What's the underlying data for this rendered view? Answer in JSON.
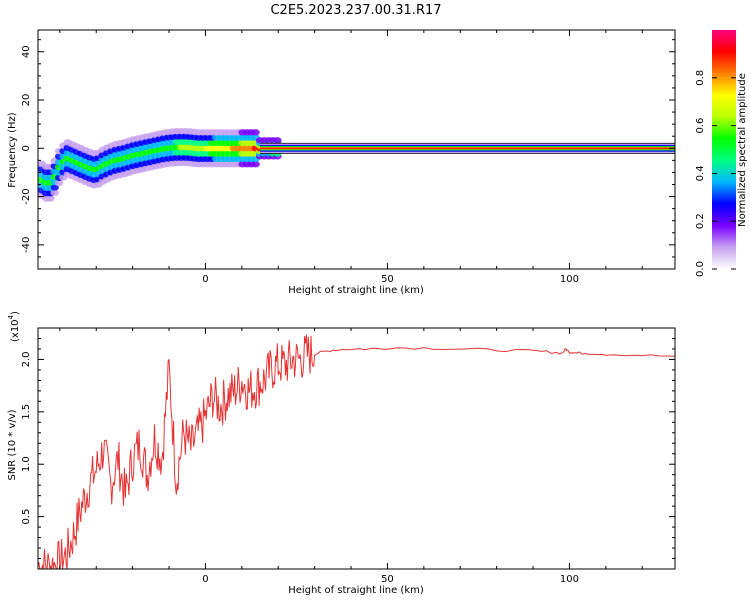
{
  "figure": {
    "title": "C2E5.2023.237.00.31.R17"
  },
  "chart_data": [
    {
      "type": "heatmap",
      "xlabel": "Height of straight line (km)",
      "ylabel": "Frequency (Hz)",
      "xlim": [
        -46,
        129
      ],
      "ylim": [
        -50,
        49
      ],
      "xticks": [
        0,
        50,
        100
      ],
      "xtick_labels": [
        "0",
        "50",
        "100"
      ],
      "yticks": [
        -40,
        -20,
        0,
        20,
        40
      ],
      "ytick_labels": [
        "-40",
        "-20",
        "0",
        "20",
        "40"
      ],
      "line_center": [
        [
          -45,
          -13
        ],
        [
          -43,
          -15
        ],
        [
          -41,
          -11
        ],
        [
          -40,
          -7
        ],
        [
          -38,
          -4
        ],
        [
          -35,
          -6
        ],
        [
          -32,
          -8
        ],
        [
          -30,
          -9
        ],
        [
          -28,
          -7
        ],
        [
          -25,
          -5
        ],
        [
          -22,
          -4
        ],
        [
          -20,
          -3
        ],
        [
          -17,
          -2
        ],
        [
          -14,
          -1
        ],
        [
          -11,
          0
        ],
        [
          -8,
          0.5
        ],
        [
          -5,
          0.5
        ],
        [
          -2,
          0
        ],
        [
          0,
          0
        ],
        [
          5,
          0
        ],
        [
          10,
          0
        ],
        [
          15,
          0
        ],
        [
          20,
          0
        ],
        [
          129,
          0
        ]
      ],
      "colorbar": {
        "label": "Normalized spectral amplitude",
        "range": [
          0,
          1
        ],
        "ticks": [
          0.0,
          0.2,
          0.4,
          0.6,
          0.8
        ],
        "tick_labels": [
          "0.0",
          "0.2",
          "0.4",
          "0.6",
          "0.8"
        ],
        "colors": [
          "#ffffff",
          "#c7a1f0",
          "#7a00ff",
          "#0000ff",
          "#00b7ff",
          "#00ff80",
          "#00ff00",
          "#b8ff00",
          "#ffff00",
          "#ff8000",
          "#ff0000",
          "#ff0080"
        ]
      }
    },
    {
      "type": "line",
      "xlabel": "Height of straight line (km)",
      "ylabel": "SNR (10 * v/v)",
      "y_multiplier": "(x10",
      "y_multiplier_exp": "4",
      "xlim": [
        -46,
        129
      ],
      "ylim": [
        0,
        23000
      ],
      "xticks": [
        0,
        50,
        100
      ],
      "xtick_labels": [
        "0",
        "50",
        "100"
      ],
      "yticks": [
        5000,
        10000,
        15000,
        20000
      ],
      "ytick_labels": [
        "0.5",
        "1.0",
        "1.5",
        "2.0"
      ],
      "color": "#e53333",
      "series": [
        {
          "x": [
            -46,
            -44,
            -42,
            -40,
            -38,
            -36,
            -34,
            -32,
            -30,
            -28,
            -26,
            -24,
            -22,
            -20,
            -18,
            -16,
            -14,
            -12,
            -10,
            -8,
            -6,
            -4,
            -2,
            0,
            2,
            4,
            6,
            8,
            10,
            12,
            14,
            16,
            18,
            20,
            22,
            24,
            26,
            28,
            30,
            32,
            35,
            40,
            45,
            50,
            60,
            70,
            80,
            90,
            95,
            98,
            99,
            100,
            101,
            102,
            105,
            110,
            120,
            129
          ],
          "y": [
            400,
            200,
            300,
            600,
            1500,
            3500,
            6000,
            8000,
            9500,
            11500,
            8000,
            10500,
            7000,
            10500,
            12000,
            9000,
            12500,
            10500,
            19000,
            8500,
            13000,
            11500,
            13000,
            14500,
            16500,
            15500,
            16500,
            17000,
            18000,
            17000,
            17500,
            18000,
            19000,
            19500,
            19500,
            20000,
            20000,
            20500,
            20500,
            20700,
            20900,
            21000,
            21000,
            21100,
            21100,
            21000,
            20900,
            20800,
            20700,
            20600,
            21000,
            20700,
            20700,
            20600,
            20600,
            20500,
            20400,
            20300
          ]
        }
      ]
    }
  ]
}
